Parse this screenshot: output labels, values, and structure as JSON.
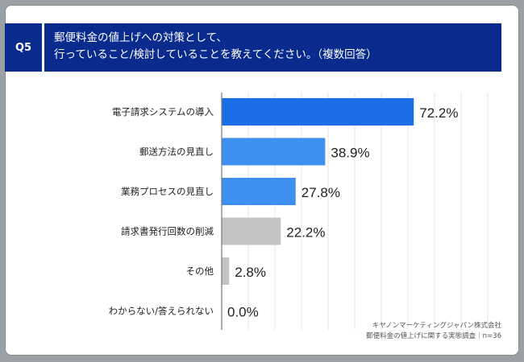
{
  "question": {
    "badge": "Q5",
    "title_line1": "郵便料金の値上げへの対策として、",
    "title_line2": "行っていること/検討していることを教えてください。（複数回答）"
  },
  "credit": {
    "line1": "キヤノンマーケティングジャパン株式会社",
    "line2": "郵便料金の値上げに関する実態調査｜n=36"
  },
  "colors": {
    "header_bg": "#0a2b8e",
    "bar_primary": "#1a6fe6",
    "bar_secondary": "#3d8ff0",
    "bar_gray": "#c3c3c3"
  },
  "chart_data": {
    "type": "bar",
    "orientation": "horizontal",
    "categories": [
      "電子請求システムの導入",
      "郵送方法の見直し",
      "業務プロセスの見直し",
      "請求書発行回数の削減",
      "その他",
      "わからない/答えられない"
    ],
    "values": [
      72.2,
      38.9,
      27.8,
      22.2,
      2.8,
      0.0
    ],
    "value_labels": [
      "72.2%",
      "38.9%",
      "27.8%",
      "22.2%",
      "2.8%",
      "0.0%"
    ],
    "bar_colors": [
      "#1a6fe6",
      "#3d8ff0",
      "#3d8ff0",
      "#c3c3c3",
      "#c3c3c3",
      "#c3c3c3"
    ],
    "xlim": [
      0,
      100
    ],
    "grid": true
  }
}
